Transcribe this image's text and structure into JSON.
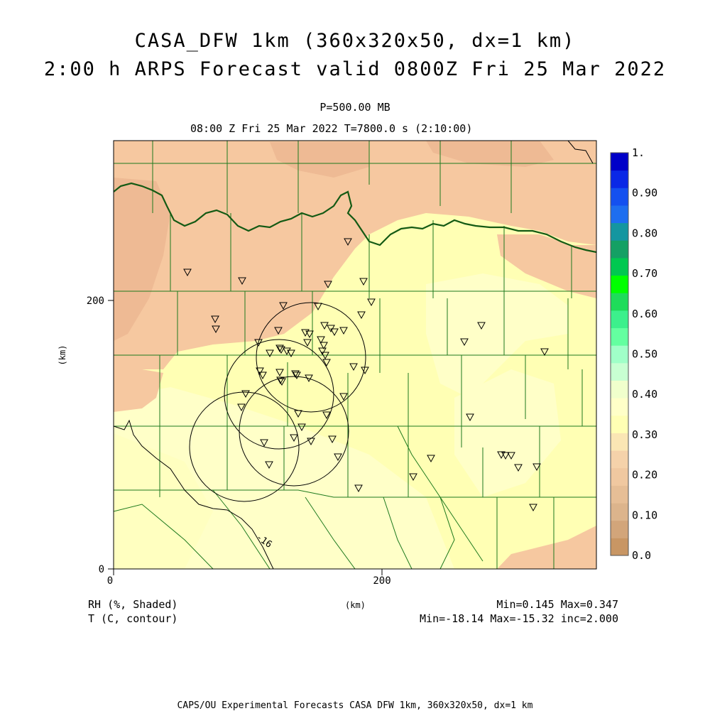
{
  "header": {
    "title_line1": "CASA_DFW 1km (360x320x50, dx=1 km)",
    "title_line2": "2:00 h ARPS Forecast valid 0800Z Fri 25 Mar 2022",
    "level": "P=500.00 MB",
    "time_line": "08:00 Z Fri 25 Mar 2022   T=7800.0 s (2:10:00)"
  },
  "axes": {
    "y_label": "(km)",
    "x_label": "(km)",
    "x_ticks": [
      "0",
      "200"
    ],
    "y_ticks": [
      "0",
      "200"
    ]
  },
  "colorbar": {
    "labels": [
      "1.",
      "0.90",
      "0.80",
      "0.70",
      "0.60",
      "0.50",
      "0.40",
      "0.30",
      "0.20",
      "0.10",
      "0.0"
    ],
    "colors": [
      "#c89664",
      "#d2a57a",
      "#dcb48c",
      "#e6be96",
      "#f0c8a0",
      "#f5d2aa",
      "#fae6b4",
      "#ffffb4",
      "#ffffc8",
      "#f0ffcc",
      "#c8ffd2",
      "#a0ffc8",
      "#64ffa0",
      "#3cf08c",
      "#1edc5a",
      "#00ff00",
      "#00c850",
      "#14a064",
      "#1496a0",
      "#1e6ef0",
      "#1450f0",
      "#0a28e6",
      "#0000c8"
    ]
  },
  "footer": {
    "rh_label": "RH (%, Shaded)",
    "t_label": "T (C, contour)",
    "km_label": "(km)",
    "rh_minmax": "Min=0.145 Max=0.347",
    "t_minmax": "Min=-18.14 Max=-15.32 inc=2.000",
    "credit": "CAPS/OU Experimental Forecasts  CASA DFW 1km, 360x320x50, dx=1 km"
  },
  "contour_label": "-16",
  "station_count": 62,
  "radar_ranges": 4
}
